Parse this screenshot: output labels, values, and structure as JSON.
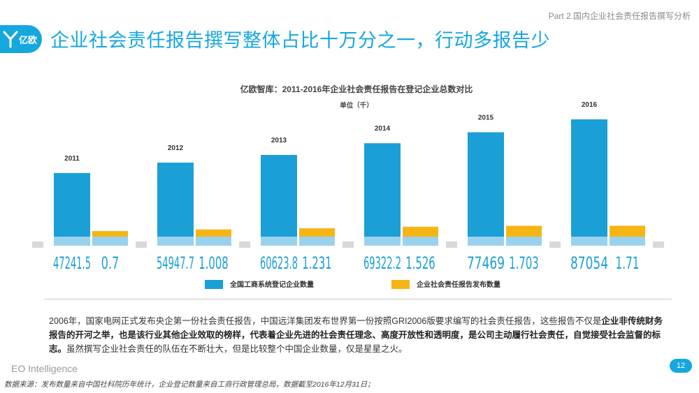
{
  "header": {
    "section": "Part 2.国内企业社会责任报告撰写分析",
    "logo_text": "亿欧",
    "title": "企业社会责任报告撰写整体占比十万分之一，行动多报告少"
  },
  "colors": {
    "accent": "#16a7de",
    "series_blue": "#1a9fd6",
    "series_gold": "#f5b514",
    "base_band": "#9ad2ee",
    "floor": "#d9d9d9"
  },
  "chart_data": {
    "type": "bar",
    "title": "亿欧智库：2011-2016年企业社会责任报告在登记企业总数对比",
    "subtitle": "单位（千）",
    "categories": [
      "2011",
      "2012",
      "2013",
      "2014",
      "2015",
      "2016"
    ],
    "series": [
      {
        "name": "全国工商系统登记企业数量",
        "values": [
          47241.5,
          54947.7,
          60623.8,
          69322.2,
          77469,
          87054
        ],
        "labels": [
          "47241.5",
          "54947.7",
          "60623.8",
          "69322.2",
          "77469",
          "87054"
        ]
      },
      {
        "name": "企业社会责任报告发布数量",
        "values": [
          0.7,
          1.008,
          1.231,
          1.526,
          1.703,
          1.71
        ],
        "labels": [
          "0.7",
          "1.008",
          "1.231",
          "1.526",
          "1.703",
          "1.71"
        ]
      }
    ],
    "legend": "bottom",
    "grid": false
  },
  "description": {
    "p1": "2006年，国家电网正式发布央企第一份社会责任报告，中国远洋集团发布世界第一份按照GRI2006版要求编写的社会责任报告，这些报告不仅是",
    "b1": "企业非传统财务报告的开河之举，也是该行业其他企业效取的榜样，代表着企业先进的社会责任理念、高度开放性和透明度，是公司主动履行社会责任，自觉接受社会监督的标志。",
    "p2": "虽然撰写企业社会责任的队伍在不断壮大，但是比较整个中国企业数量，仅是星星之火。"
  },
  "footer": {
    "brand": "EO Intelligence",
    "page": "12",
    "source": "数据来源：发布数量来自中国社科院历年统计，企业登记数量来自工商行政管理总局，数据截至2016年12月31日；"
  }
}
